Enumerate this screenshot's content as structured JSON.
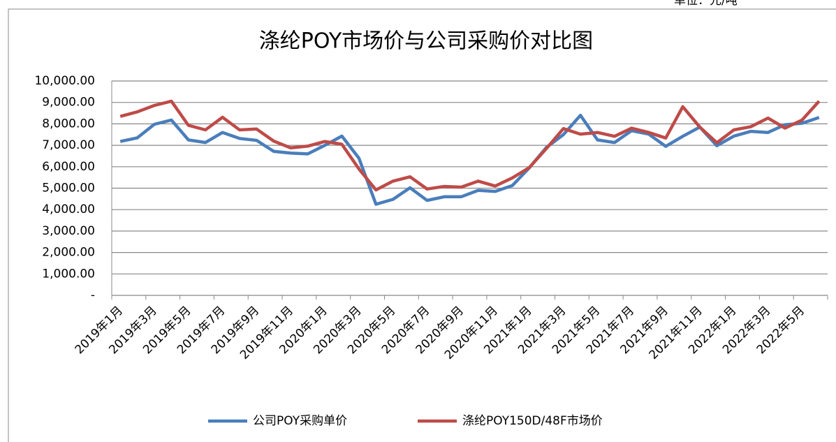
{
  "chart_data": {
    "type": "line",
    "unit": "单位：元/吨",
    "title": "涤纶POY市场价与公司采购价对比图",
    "categories": [
      "2019年1月",
      null,
      "2019年3月",
      null,
      "2019年5月",
      null,
      "2019年7月",
      null,
      "2019年9月",
      null,
      "2019年11月",
      null,
      "2020年1月",
      null,
      "2020年3月",
      null,
      "2020年5月",
      null,
      "2020年7月",
      null,
      "2020年9月",
      null,
      "2020年11月",
      null,
      "2021年1月",
      null,
      "2021年3月",
      null,
      "2021年5月",
      null,
      "2021年7月",
      null,
      "2021年9月",
      null,
      "2021年11月",
      null,
      "2022年1月",
      null,
      "2022年3月",
      null,
      "2022年5月",
      null
    ],
    "series": [
      {
        "name": "公司POY采购单价",
        "color": "#4a7ebb",
        "values": [
          7180,
          7350,
          7980,
          8180,
          7250,
          7130,
          7600,
          7320,
          7230,
          6720,
          6640,
          6600,
          7000,
          7430,
          6400,
          4250,
          4480,
          5020,
          4430,
          4600,
          4600,
          4900,
          4850,
          5120,
          5950,
          6900,
          7500,
          8400,
          7250,
          7130,
          7680,
          7520,
          6950,
          7420,
          7850,
          6980,
          7430,
          7650,
          7600,
          7960,
          8030,
          8300
        ]
      },
      {
        "name": "涤纶POY150D/48F市场价",
        "color": "#be4b48",
        "values": [
          8350,
          8560,
          8860,
          9060,
          7930,
          7720,
          8310,
          7720,
          7760,
          7200,
          6880,
          6960,
          7180,
          7050,
          5900,
          4920,
          5330,
          5530,
          4960,
          5080,
          5050,
          5330,
          5100,
          5480,
          5960,
          6850,
          7780,
          7520,
          7600,
          7420,
          7800,
          7600,
          7340,
          8800,
          7850,
          7120,
          7720,
          7870,
          8270,
          7800,
          8180,
          9060
        ]
      }
    ],
    "ylim": [
      0,
      10000
    ],
    "yticks": [
      {
        "value": 0,
        "label": "-"
      },
      {
        "value": 1000,
        "label": "1,000.00"
      },
      {
        "value": 2000,
        "label": "2,000.00"
      },
      {
        "value": 3000,
        "label": "3,000.00"
      },
      {
        "value": 4000,
        "label": "4,000.00"
      },
      {
        "value": 5000,
        "label": "5,000.00"
      },
      {
        "value": 6000,
        "label": "6,000.00"
      },
      {
        "value": 7000,
        "label": "7,000.00"
      },
      {
        "value": 8000,
        "label": "8,000.00"
      },
      {
        "value": 9000,
        "label": "9,000.00"
      },
      {
        "value": 10000,
        "label": "10,000.00"
      }
    ],
    "grid": true,
    "legend": "bottom"
  }
}
